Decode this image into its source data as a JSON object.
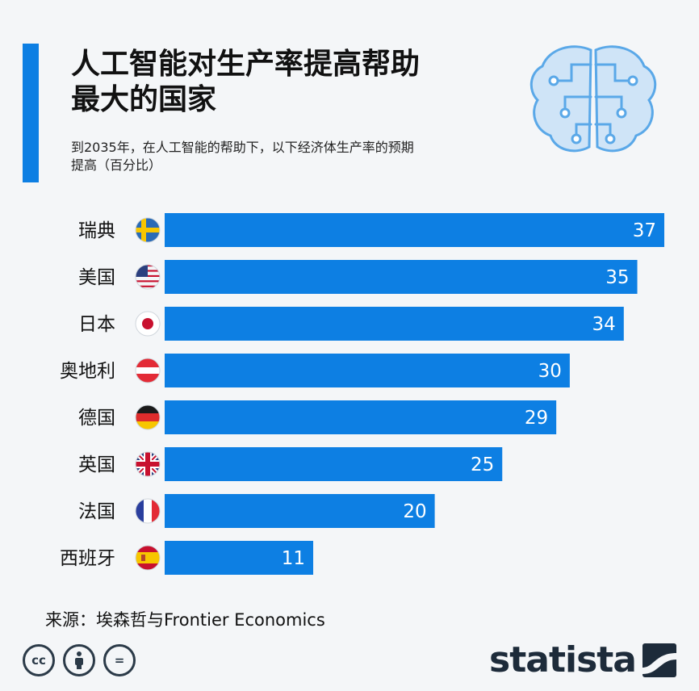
{
  "header": {
    "title_line1": "人工智能对生产率提高帮助",
    "title_line2": "最大的国家",
    "subtitle_line1": "到2035年，在人工智能的帮助下，以下经济体生产率的预期",
    "subtitle_line2": "提高（百分比）"
  },
  "footer": {
    "source": "来源：埃森哲与Frontier Economics",
    "brand": "statista",
    "license_icons": [
      "cc-icon",
      "attribution-icon",
      "no-derivatives-icon"
    ],
    "license_glyphs": [
      "cc",
      "",
      "="
    ]
  },
  "colors": {
    "bar": "#0d7fe3",
    "accent": "#0d7fe3",
    "bar_label": "#ffffff",
    "brain_fill": "#cfe4f7",
    "brain_line": "#5aa8e8"
  },
  "chart_data": {
    "type": "bar",
    "orientation": "horizontal",
    "categories": [
      "瑞典",
      "美国",
      "日本",
      "奥地利",
      "德国",
      "英国",
      "法国",
      "西班牙"
    ],
    "flags": [
      "sweden-flag-icon",
      "usa-flag-icon",
      "japan-flag-icon",
      "austria-flag-icon",
      "germany-flag-icon",
      "uk-flag-icon",
      "france-flag-icon",
      "spain-flag-icon"
    ],
    "values": [
      37,
      35,
      34,
      30,
      29,
      25,
      20,
      11
    ],
    "data_labels": [
      "37",
      "35",
      "34",
      "30",
      "29",
      "25",
      "20",
      "11"
    ],
    "title": "人工智能对生产率提高帮助最大的国家",
    "xlabel": "",
    "ylabel": "",
    "xlim": [
      0,
      37
    ],
    "grid": false,
    "legend": "none"
  }
}
